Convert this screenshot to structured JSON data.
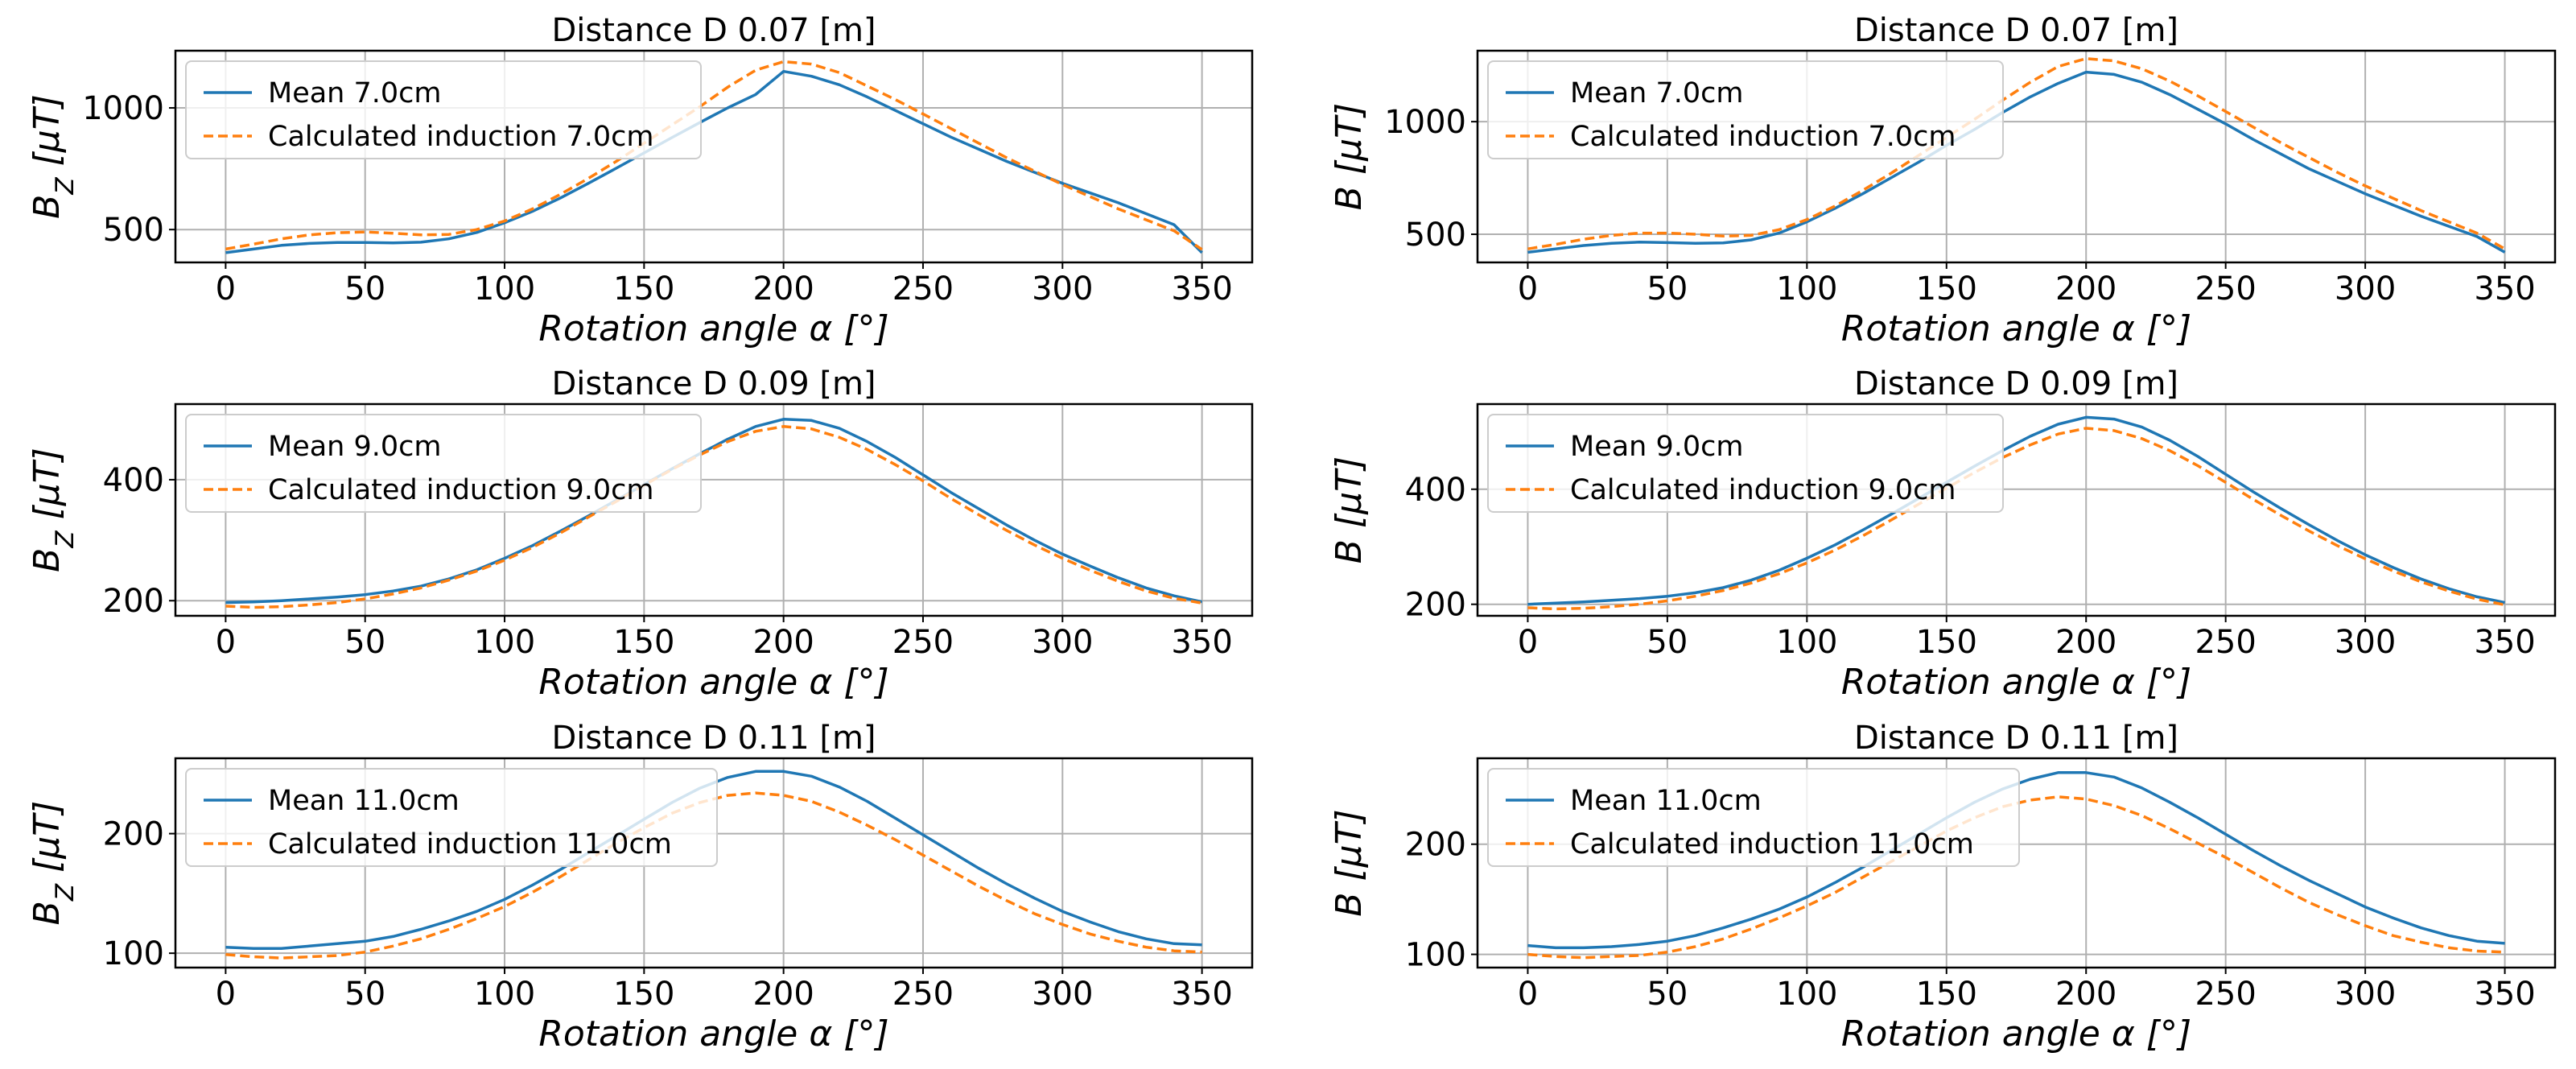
{
  "chart_data": [
    {
      "type": "line",
      "title": "Distance D 0.07 [m]",
      "xlabel": "Rotation angle α [°]",
      "ylabel": "B_Z [μT]",
      "xlim": [
        -18,
        368
      ],
      "ylim": [
        365,
        1235
      ],
      "xticks": [
        0,
        50,
        100,
        150,
        200,
        250,
        300,
        350
      ],
      "yticks": [
        500,
        1000
      ],
      "grid": true,
      "legend": "upper-left",
      "series": [
        {
          "name": "Mean 7.0cm",
          "color": "#1f77b4",
          "dash": false,
          "x": [
            0,
            10,
            20,
            30,
            40,
            50,
            60,
            70,
            80,
            90,
            100,
            110,
            120,
            130,
            140,
            150,
            160,
            170,
            180,
            190,
            200,
            210,
            220,
            230,
            240,
            250,
            260,
            270,
            280,
            290,
            300,
            310,
            320,
            330,
            340,
            350
          ],
          "y": [
            405,
            420,
            435,
            443,
            447,
            447,
            445,
            448,
            462,
            488,
            528,
            575,
            630,
            690,
            752,
            815,
            878,
            940,
            1000,
            1055,
            1150,
            1130,
            1095,
            1045,
            990,
            935,
            880,
            830,
            780,
            735,
            690,
            650,
            610,
            565,
            520,
            405
          ]
        },
        {
          "name": "Calculated induction 7.0cm",
          "color": "#ff7f0e",
          "dash": true,
          "x": [
            0,
            10,
            20,
            30,
            40,
            50,
            60,
            70,
            80,
            90,
            100,
            110,
            120,
            130,
            140,
            150,
            160,
            170,
            180,
            190,
            200,
            210,
            220,
            230,
            240,
            250,
            260,
            270,
            280,
            290,
            300,
            310,
            320,
            330,
            340,
            350
          ],
          "y": [
            420,
            440,
            462,
            478,
            487,
            490,
            485,
            478,
            480,
            500,
            535,
            585,
            645,
            710,
            780,
            855,
            930,
            1005,
            1085,
            1155,
            1190,
            1180,
            1145,
            1090,
            1035,
            975,
            915,
            855,
            795,
            740,
            685,
            635,
            585,
            540,
            495,
            418
          ]
        }
      ]
    },
    {
      "type": "line",
      "title": "Distance D 0.07 [m]",
      "xlabel": "Rotation angle α [°]",
      "ylabel": "B [μT]",
      "xlim": [
        -18,
        368
      ],
      "ylim": [
        375,
        1315
      ],
      "xticks": [
        0,
        50,
        100,
        150,
        200,
        250,
        300,
        350
      ],
      "yticks": [
        500,
        1000
      ],
      "grid": true,
      "legend": "upper-left",
      "series": [
        {
          "name": "Mean 7.0cm",
          "color": "#1f77b4",
          "dash": false,
          "x": [
            0,
            10,
            20,
            30,
            40,
            50,
            60,
            70,
            80,
            90,
            100,
            110,
            120,
            130,
            140,
            150,
            160,
            170,
            180,
            190,
            200,
            210,
            220,
            230,
            240,
            250,
            260,
            270,
            280,
            290,
            300,
            310,
            320,
            330,
            340,
            350
          ],
          "y": [
            420,
            435,
            450,
            460,
            465,
            463,
            460,
            462,
            475,
            505,
            555,
            615,
            680,
            750,
            820,
            895,
            965,
            1040,
            1110,
            1170,
            1220,
            1210,
            1175,
            1120,
            1055,
            990,
            920,
            855,
            790,
            735,
            680,
            630,
            580,
            535,
            490,
            420
          ]
        },
        {
          "name": "Calculated induction 7.0cm",
          "color": "#ff7f0e",
          "dash": true,
          "x": [
            0,
            10,
            20,
            30,
            40,
            50,
            60,
            70,
            80,
            90,
            100,
            110,
            120,
            130,
            140,
            150,
            160,
            170,
            180,
            190,
            200,
            210,
            220,
            230,
            240,
            250,
            260,
            270,
            280,
            290,
            300,
            310,
            320,
            330,
            340,
            350
          ],
          "y": [
            435,
            455,
            478,
            495,
            505,
            505,
            500,
            492,
            495,
            520,
            565,
            625,
            695,
            770,
            850,
            930,
            1010,
            1095,
            1175,
            1245,
            1280,
            1270,
            1235,
            1180,
            1115,
            1045,
            975,
            905,
            840,
            775,
            715,
            660,
            605,
            555,
            505,
            435
          ]
        }
      ]
    },
    {
      "type": "line",
      "title": "Distance D 0.09 [m]",
      "xlabel": "Rotation angle α [°]",
      "ylabel": "B_Z [μT]",
      "xlim": [
        -18,
        368
      ],
      "ylim": [
        175,
        525
      ],
      "xticks": [
        0,
        50,
        100,
        150,
        200,
        250,
        300,
        350
      ],
      "yticks": [
        200,
        400
      ],
      "grid": true,
      "legend": "upper-left",
      "series": [
        {
          "name": "Mean 9.0cm",
          "color": "#1f77b4",
          "dash": false,
          "x": [
            0,
            10,
            20,
            30,
            40,
            50,
            60,
            70,
            80,
            90,
            100,
            110,
            120,
            130,
            140,
            150,
            160,
            170,
            180,
            190,
            200,
            210,
            220,
            230,
            240,
            250,
            260,
            270,
            280,
            290,
            300,
            310,
            320,
            330,
            340,
            350
          ],
          "y": [
            197,
            198,
            200,
            203,
            206,
            210,
            216,
            224,
            236,
            251,
            270,
            291,
            315,
            340,
            366,
            392,
            418,
            443,
            467,
            488,
            500,
            498,
            485,
            463,
            437,
            408,
            379,
            352,
            325,
            300,
            277,
            257,
            238,
            221,
            208,
            198
          ]
        },
        {
          "name": "Calculated induction 9.0cm",
          "color": "#ff7f0e",
          "dash": true,
          "x": [
            0,
            10,
            20,
            30,
            40,
            50,
            60,
            70,
            80,
            90,
            100,
            110,
            120,
            130,
            140,
            150,
            160,
            170,
            180,
            190,
            200,
            210,
            220,
            230,
            240,
            250,
            260,
            270,
            280,
            290,
            300,
            310,
            320,
            330,
            340,
            350
          ],
          "y": [
            191,
            189,
            190,
            193,
            197,
            203,
            211,
            221,
            234,
            249,
            267,
            288,
            312,
            338,
            364,
            391,
            417,
            441,
            463,
            480,
            488,
            484,
            470,
            450,
            425,
            398,
            369,
            342,
            316,
            292,
            270,
            250,
            232,
            216,
            204,
            196
          ]
        }
      ]
    },
    {
      "type": "line",
      "title": "Distance D 0.09 [m]",
      "xlabel": "Rotation angle α [°]",
      "ylabel": "B [μT]",
      "xlim": [
        -18,
        368
      ],
      "ylim": [
        180,
        548
      ],
      "xticks": [
        0,
        50,
        100,
        150,
        200,
        250,
        300,
        350
      ],
      "yticks": [
        200,
        400
      ],
      "grid": true,
      "legend": "upper-left",
      "series": [
        {
          "name": "Mean 9.0cm",
          "color": "#1f77b4",
          "dash": false,
          "x": [
            0,
            10,
            20,
            30,
            40,
            50,
            60,
            70,
            80,
            90,
            100,
            110,
            120,
            130,
            140,
            150,
            160,
            170,
            180,
            190,
            200,
            210,
            220,
            230,
            240,
            250,
            260,
            270,
            280,
            290,
            300,
            310,
            320,
            330,
            340,
            350
          ],
          "y": [
            200,
            202,
            204,
            207,
            210,
            214,
            220,
            229,
            242,
            259,
            280,
            303,
            329,
            356,
            384,
            412,
            440,
            467,
            492,
            513,
            525,
            522,
            508,
            485,
            457,
            426,
            395,
            366,
            338,
            311,
            286,
            264,
            244,
            227,
            213,
            203
          ]
        },
        {
          "name": "Calculated induction 9.0cm",
          "color": "#ff7f0e",
          "dash": true,
          "x": [
            0,
            10,
            20,
            30,
            40,
            50,
            60,
            70,
            80,
            90,
            100,
            110,
            120,
            130,
            140,
            150,
            160,
            170,
            180,
            190,
            200,
            210,
            220,
            230,
            240,
            250,
            260,
            270,
            280,
            290,
            300,
            310,
            320,
            330,
            340,
            350
          ],
          "y": [
            194,
            192,
            193,
            196,
            200,
            206,
            214,
            224,
            237,
            253,
            272,
            294,
            319,
            346,
            374,
            402,
            429,
            455,
            477,
            496,
            506,
            502,
            488,
            467,
            441,
            412,
            382,
            354,
            327,
            302,
            279,
            258,
            239,
            223,
            209,
            199
          ]
        }
      ]
    },
    {
      "type": "line",
      "title": "Distance D 0.11 [m]",
      "xlabel": "Rotation angle α [°]",
      "ylabel": "B_Z [μT]",
      "xlim": [
        -18,
        368
      ],
      "ylim": [
        88,
        263
      ],
      "xticks": [
        0,
        50,
        100,
        150,
        200,
        250,
        300,
        350
      ],
      "yticks": [
        100,
        200
      ],
      "grid": true,
      "legend": "upper-left",
      "series": [
        {
          "name": "Mean 11.0cm",
          "color": "#1f77b4",
          "dash": false,
          "x": [
            0,
            10,
            20,
            30,
            40,
            50,
            60,
            70,
            80,
            90,
            100,
            110,
            120,
            130,
            140,
            150,
            160,
            170,
            180,
            190,
            200,
            210,
            220,
            230,
            240,
            250,
            260,
            270,
            280,
            290,
            300,
            310,
            320,
            330,
            340,
            350
          ],
          "y": [
            105,
            104,
            104,
            106,
            108,
            110,
            114,
            120,
            127,
            135,
            145,
            157,
            170,
            184,
            198,
            212,
            226,
            238,
            247,
            252,
            252,
            248,
            239,
            227,
            213,
            199,
            185,
            171,
            158,
            146,
            135,
            126,
            118,
            112,
            108,
            107
          ]
        },
        {
          "name": "Calculated induction 11.0cm",
          "color": "#ff7f0e",
          "dash": true,
          "x": [
            0,
            10,
            20,
            30,
            40,
            50,
            60,
            70,
            80,
            90,
            100,
            110,
            120,
            130,
            140,
            150,
            160,
            170,
            180,
            190,
            200,
            210,
            220,
            230,
            240,
            250,
            260,
            270,
            280,
            290,
            300,
            310,
            320,
            330,
            340,
            350
          ],
          "y": [
            99,
            97,
            96,
            97,
            98,
            101,
            106,
            112,
            120,
            129,
            139,
            151,
            164,
            178,
            192,
            205,
            217,
            226,
            232,
            234,
            232,
            227,
            218,
            207,
            195,
            182,
            169,
            156,
            144,
            133,
            124,
            116,
            110,
            105,
            102,
            101
          ]
        }
      ]
    },
    {
      "type": "line",
      "title": "Distance D 0.11 [m]",
      "xlabel": "Rotation angle α [°]",
      "ylabel": "B [μT]",
      "xlim": [
        -18,
        368
      ],
      "ylim": [
        88,
        278
      ],
      "xticks": [
        0,
        50,
        100,
        150,
        200,
        250,
        300,
        350
      ],
      "yticks": [
        100,
        200
      ],
      "grid": true,
      "legend": "upper-left",
      "series": [
        {
          "name": "Mean 11.0cm",
          "color": "#1f77b4",
          "dash": false,
          "x": [
            0,
            10,
            20,
            30,
            40,
            50,
            60,
            70,
            80,
            90,
            100,
            110,
            120,
            130,
            140,
            150,
            160,
            170,
            180,
            190,
            200,
            210,
            220,
            230,
            240,
            250,
            260,
            270,
            280,
            290,
            300,
            310,
            320,
            330,
            340,
            350
          ],
          "y": [
            108,
            106,
            106,
            107,
            109,
            112,
            117,
            124,
            132,
            141,
            152,
            165,
            179,
            194,
            209,
            224,
            238,
            250,
            259,
            265,
            265,
            261,
            251,
            238,
            224,
            209,
            194,
            180,
            167,
            155,
            143,
            133,
            124,
            117,
            112,
            110
          ]
        },
        {
          "name": "Calculated induction 11.0cm",
          "color": "#ff7f0e",
          "dash": true,
          "x": [
            0,
            10,
            20,
            30,
            40,
            50,
            60,
            70,
            80,
            90,
            100,
            110,
            120,
            130,
            140,
            150,
            160,
            170,
            180,
            190,
            200,
            210,
            220,
            230,
            240,
            250,
            260,
            270,
            280,
            290,
            300,
            310,
            320,
            330,
            340,
            350
          ],
          "y": [
            100,
            98,
            97,
            98,
            99,
            102,
            107,
            114,
            123,
            133,
            144,
            156,
            170,
            184,
            198,
            212,
            224,
            234,
            240,
            243,
            241,
            235,
            226,
            214,
            201,
            188,
            174,
            160,
            147,
            136,
            126,
            117,
            111,
            106,
            103,
            102
          ]
        }
      ]
    }
  ]
}
